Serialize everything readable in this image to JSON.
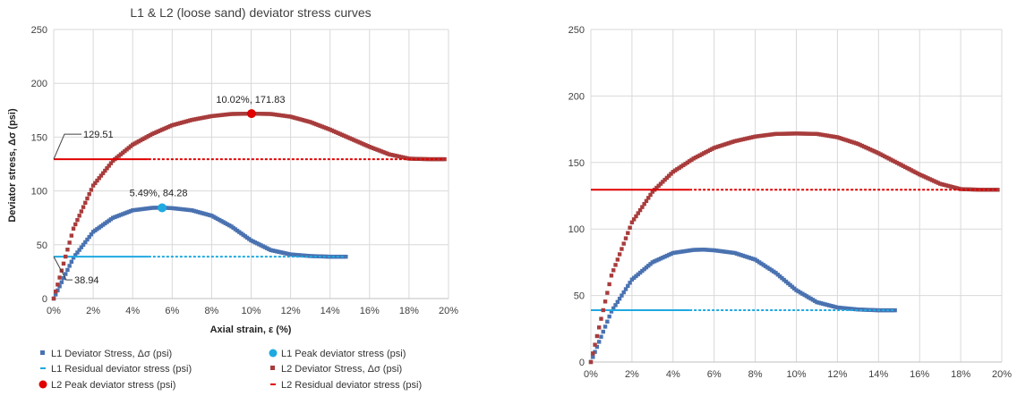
{
  "chart_data": [
    {
      "type": "scatter",
      "title": "L1 & L2 (loose sand) deviator stress curves",
      "xlabel": "Axial strain, ε (%)",
      "ylabel": "Deviator stress, Δσ (psi)",
      "xlim": [
        0,
        20
      ],
      "ylim": [
        0,
        250
      ],
      "x_ticks": [
        "0%",
        "2%",
        "4%",
        "6%",
        "8%",
        "10%",
        "12%",
        "14%",
        "16%",
        "18%",
        "20%"
      ],
      "y_ticks": [
        "0",
        "50",
        "100",
        "150",
        "200",
        "250"
      ],
      "grid": true,
      "legend_position": "bottom",
      "series": [
        {
          "name": "L1 Deviator Stress, Δσ (psi)",
          "color": "#4a72b0",
          "marker": "square",
          "x": [
            0,
            1,
            2,
            3,
            4,
            5,
            5.5,
            6,
            7,
            8,
            9,
            10,
            11,
            12,
            13,
            14,
            14.8
          ],
          "y": [
            0,
            38,
            62,
            75,
            82,
            84.3,
            84.5,
            84,
            82,
            77,
            67,
            54,
            45,
            41,
            39.5,
            38.9,
            38.9
          ]
        },
        {
          "name": "L1 Peak deviator stress (psi)",
          "color": "#1fa9e1",
          "marker": "circle",
          "x": [
            5.49
          ],
          "y": [
            84.28
          ]
        },
        {
          "name": "L1 Residual deviator stress (psi)",
          "color": "#1fa9e1",
          "marker": "dash",
          "x": [
            0,
            14.8
          ],
          "y": [
            38.94,
            38.94
          ]
        },
        {
          "name": "L2 Deviator Stress, Δσ (psi)",
          "color": "#a83c3c",
          "marker": "square",
          "x": [
            0,
            1,
            2,
            3,
            4,
            5,
            6,
            7,
            8,
            9,
            10,
            11,
            12,
            13,
            14,
            15,
            16,
            17,
            18,
            19,
            19.8
          ],
          "y": [
            0,
            65,
            105,
            128,
            143,
            153,
            161,
            166,
            169.5,
            171.5,
            171.8,
            171.5,
            169,
            164,
            157,
            149,
            141,
            134,
            130,
            129.5,
            129.5
          ]
        },
        {
          "name": "L2 Peak deviator stress (psi)",
          "color": "#e00000",
          "marker": "circle",
          "x": [
            10.02
          ],
          "y": [
            171.83
          ]
        },
        {
          "name": "L2 Residual deviator stress (psi)",
          "color": "#e00000",
          "marker": "dash",
          "x": [
            0,
            19.8
          ],
          "y": [
            129.51,
            129.51
          ]
        }
      ],
      "annotations": [
        {
          "text": "10.02%, 171.83"
        },
        {
          "text": "5.49%, 84.28"
        },
        {
          "text": "129.51"
        },
        {
          "text": "38.94"
        }
      ]
    },
    {
      "type": "scatter",
      "title": "",
      "xlim": [
        0,
        20
      ],
      "ylim": [
        0,
        250
      ],
      "x_ticks": [
        "0%",
        "2%",
        "4%",
        "6%",
        "8%",
        "10%",
        "12%",
        "14%",
        "16%",
        "18%",
        "20%"
      ],
      "y_ticks": [
        "0",
        "50",
        "100",
        "150",
        "200",
        "250"
      ],
      "grid": true,
      "series": [
        {
          "color": "#4a72b0",
          "marker": "square",
          "x": [
            0,
            1,
            2,
            3,
            4,
            5,
            5.5,
            6,
            7,
            8,
            9,
            10,
            11,
            12,
            13,
            14,
            14.8
          ],
          "y": [
            0,
            38,
            62,
            75,
            82,
            84.3,
            84.5,
            84,
            82,
            77,
            67,
            54,
            45,
            41,
            39.5,
            38.9,
            38.9
          ]
        },
        {
          "color": "#1fa9e1",
          "marker": "dash",
          "x": [
            0,
            14.8
          ],
          "y": [
            38.94,
            38.94
          ]
        },
        {
          "color": "#a83c3c",
          "marker": "square",
          "x": [
            0,
            1,
            2,
            3,
            4,
            5,
            6,
            7,
            8,
            9,
            10,
            11,
            12,
            13,
            14,
            15,
            16,
            17,
            18,
            19,
            19.8
          ],
          "y": [
            0,
            65,
            105,
            128,
            143,
            153,
            161,
            166,
            169.5,
            171.5,
            171.8,
            171.5,
            169,
            164,
            157,
            149,
            141,
            134,
            130,
            129.5,
            129.5
          ]
        },
        {
          "color": "#e00000",
          "marker": "dash",
          "x": [
            0,
            19.8
          ],
          "y": [
            129.51,
            129.51
          ]
        }
      ]
    }
  ]
}
